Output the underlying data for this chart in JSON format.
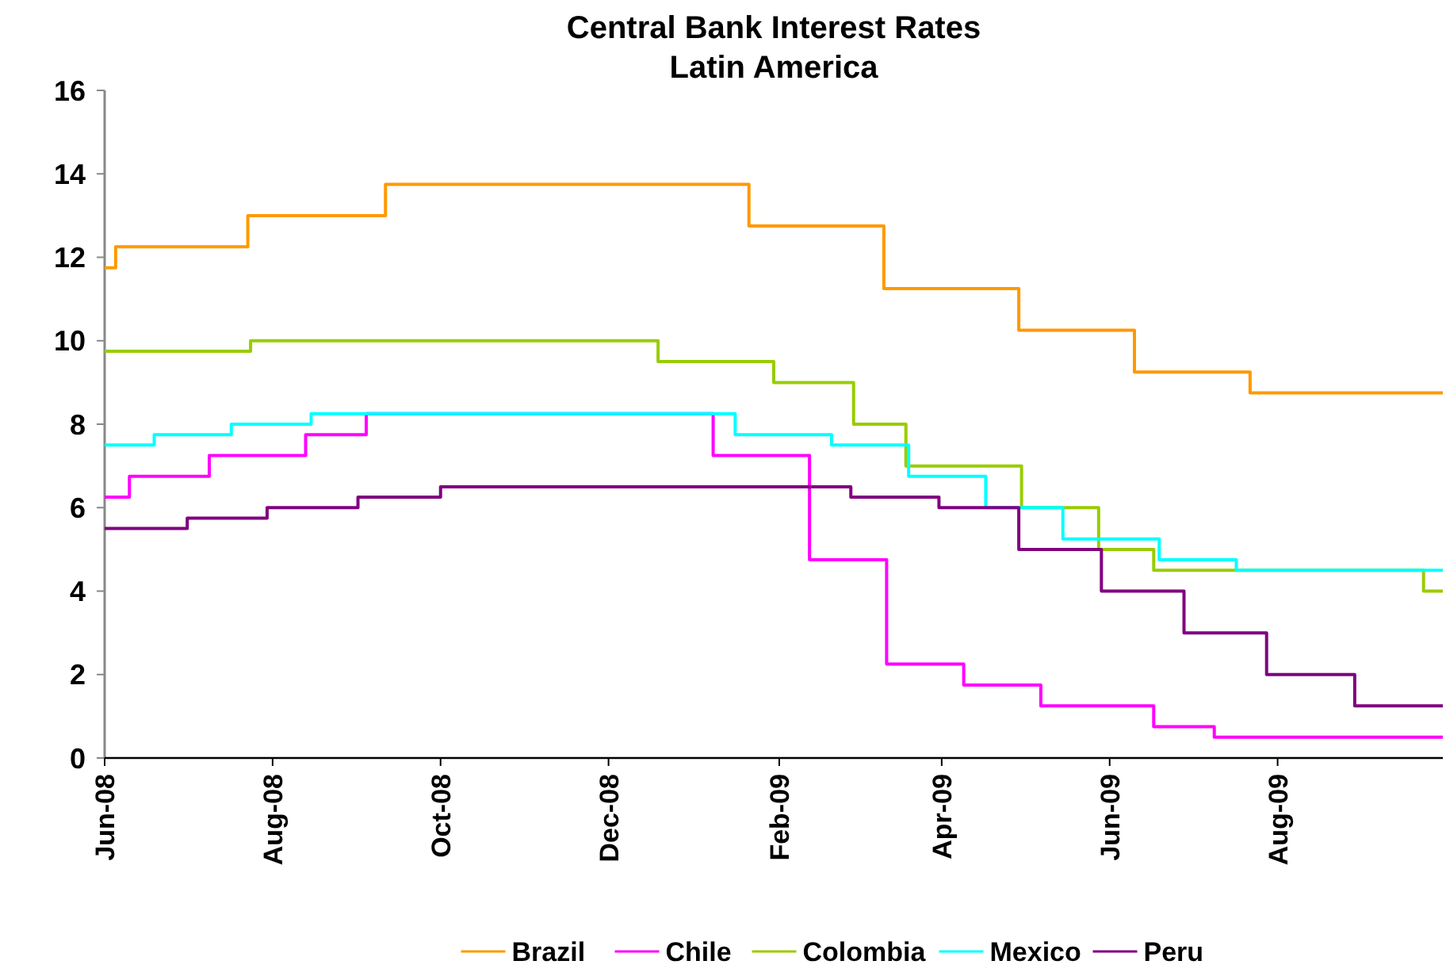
{
  "chart_data": {
    "type": "step",
    "title": "Central Bank Interest Rates",
    "subtitle": "Latin America",
    "xlim": [
      "2008-06-01",
      "2009-09-30"
    ],
    "xticks": [
      {
        "value": "2008-06-01",
        "label": "Jun-08"
      },
      {
        "value": "2008-08-01",
        "label": "Aug-08"
      },
      {
        "value": "2008-10-01",
        "label": "Oct-08"
      },
      {
        "value": "2008-12-01",
        "label": "Dec-08"
      },
      {
        "value": "2009-02-01",
        "label": "Feb-09"
      },
      {
        "value": "2009-04-01",
        "label": "Apr-09"
      },
      {
        "value": "2009-06-01",
        "label": "Jun-09"
      },
      {
        "value": "2009-08-01",
        "label": "Aug-09"
      }
    ],
    "ylim": [
      0,
      16
    ],
    "yticks": [
      0,
      2,
      4,
      6,
      8,
      10,
      12,
      14,
      16
    ],
    "grid": false,
    "legend": "bottom",
    "marker": "none",
    "line_style": "solid",
    "series": [
      {
        "name": "Brazil",
        "color": "#ff9900",
        "x": [
          "2008-06-01",
          "2008-06-05",
          "2008-07-23",
          "2008-09-11",
          "2009-01-21",
          "2009-03-11",
          "2009-04-29",
          "2009-06-10",
          "2009-07-22",
          "2009-09-30"
        ],
        "values": [
          11.75,
          12.25,
          13,
          13.75,
          12.75,
          11.25,
          10.25,
          9.25,
          8.75,
          8.75
        ]
      },
      {
        "name": "Chile",
        "color": "#ff00ff",
        "x": [
          "2008-06-01",
          "2008-06-10",
          "2008-07-09",
          "2008-08-13",
          "2008-09-04",
          "2009-01-08",
          "2009-02-12",
          "2009-03-12",
          "2009-04-09",
          "2009-05-07",
          "2009-06-17",
          "2009-07-09",
          "2009-09-30"
        ],
        "values": [
          6.25,
          6.75,
          7.25,
          7.75,
          8.25,
          7.25,
          4.75,
          2.25,
          1.75,
          1.25,
          0.75,
          0.5,
          0.5
        ]
      },
      {
        "name": "Colombia",
        "color": "#99cc00",
        "x": [
          "2008-06-01",
          "2008-07-24",
          "2008-12-19",
          "2009-01-30",
          "2009-02-28",
          "2009-03-19",
          "2009-04-30",
          "2009-05-28",
          "2009-06-17",
          "2009-09-23",
          "2009-09-30"
        ],
        "values": [
          9.75,
          10,
          9.5,
          9,
          8,
          7,
          6,
          5,
          4.5,
          4,
          4
        ]
      },
      {
        "name": "Mexico",
        "color": "#00ffff",
        "x": [
          "2008-06-01",
          "2008-06-19",
          "2008-07-17",
          "2008-08-15",
          "2009-01-16",
          "2009-02-20",
          "2009-03-20",
          "2009-04-17",
          "2009-05-15",
          "2009-06-19",
          "2009-07-17",
          "2009-09-30"
        ],
        "values": [
          7.5,
          7.75,
          8,
          8.25,
          7.75,
          7.5,
          6.75,
          6,
          5.25,
          4.75,
          4.5,
          4.5
        ]
      },
      {
        "name": "Peru",
        "color": "#800080",
        "x": [
          "2008-06-01",
          "2008-07-01",
          "2008-07-30",
          "2008-09-01",
          "2008-10-01",
          "2009-02-27",
          "2009-03-31",
          "2009-04-29",
          "2009-05-29",
          "2009-06-28",
          "2009-07-28",
          "2009-08-29",
          "2009-09-30"
        ],
        "values": [
          5.5,
          5.75,
          6,
          6.25,
          6.5,
          6.25,
          6,
          5,
          4,
          3,
          2,
          1.25,
          1.25
        ]
      }
    ]
  }
}
